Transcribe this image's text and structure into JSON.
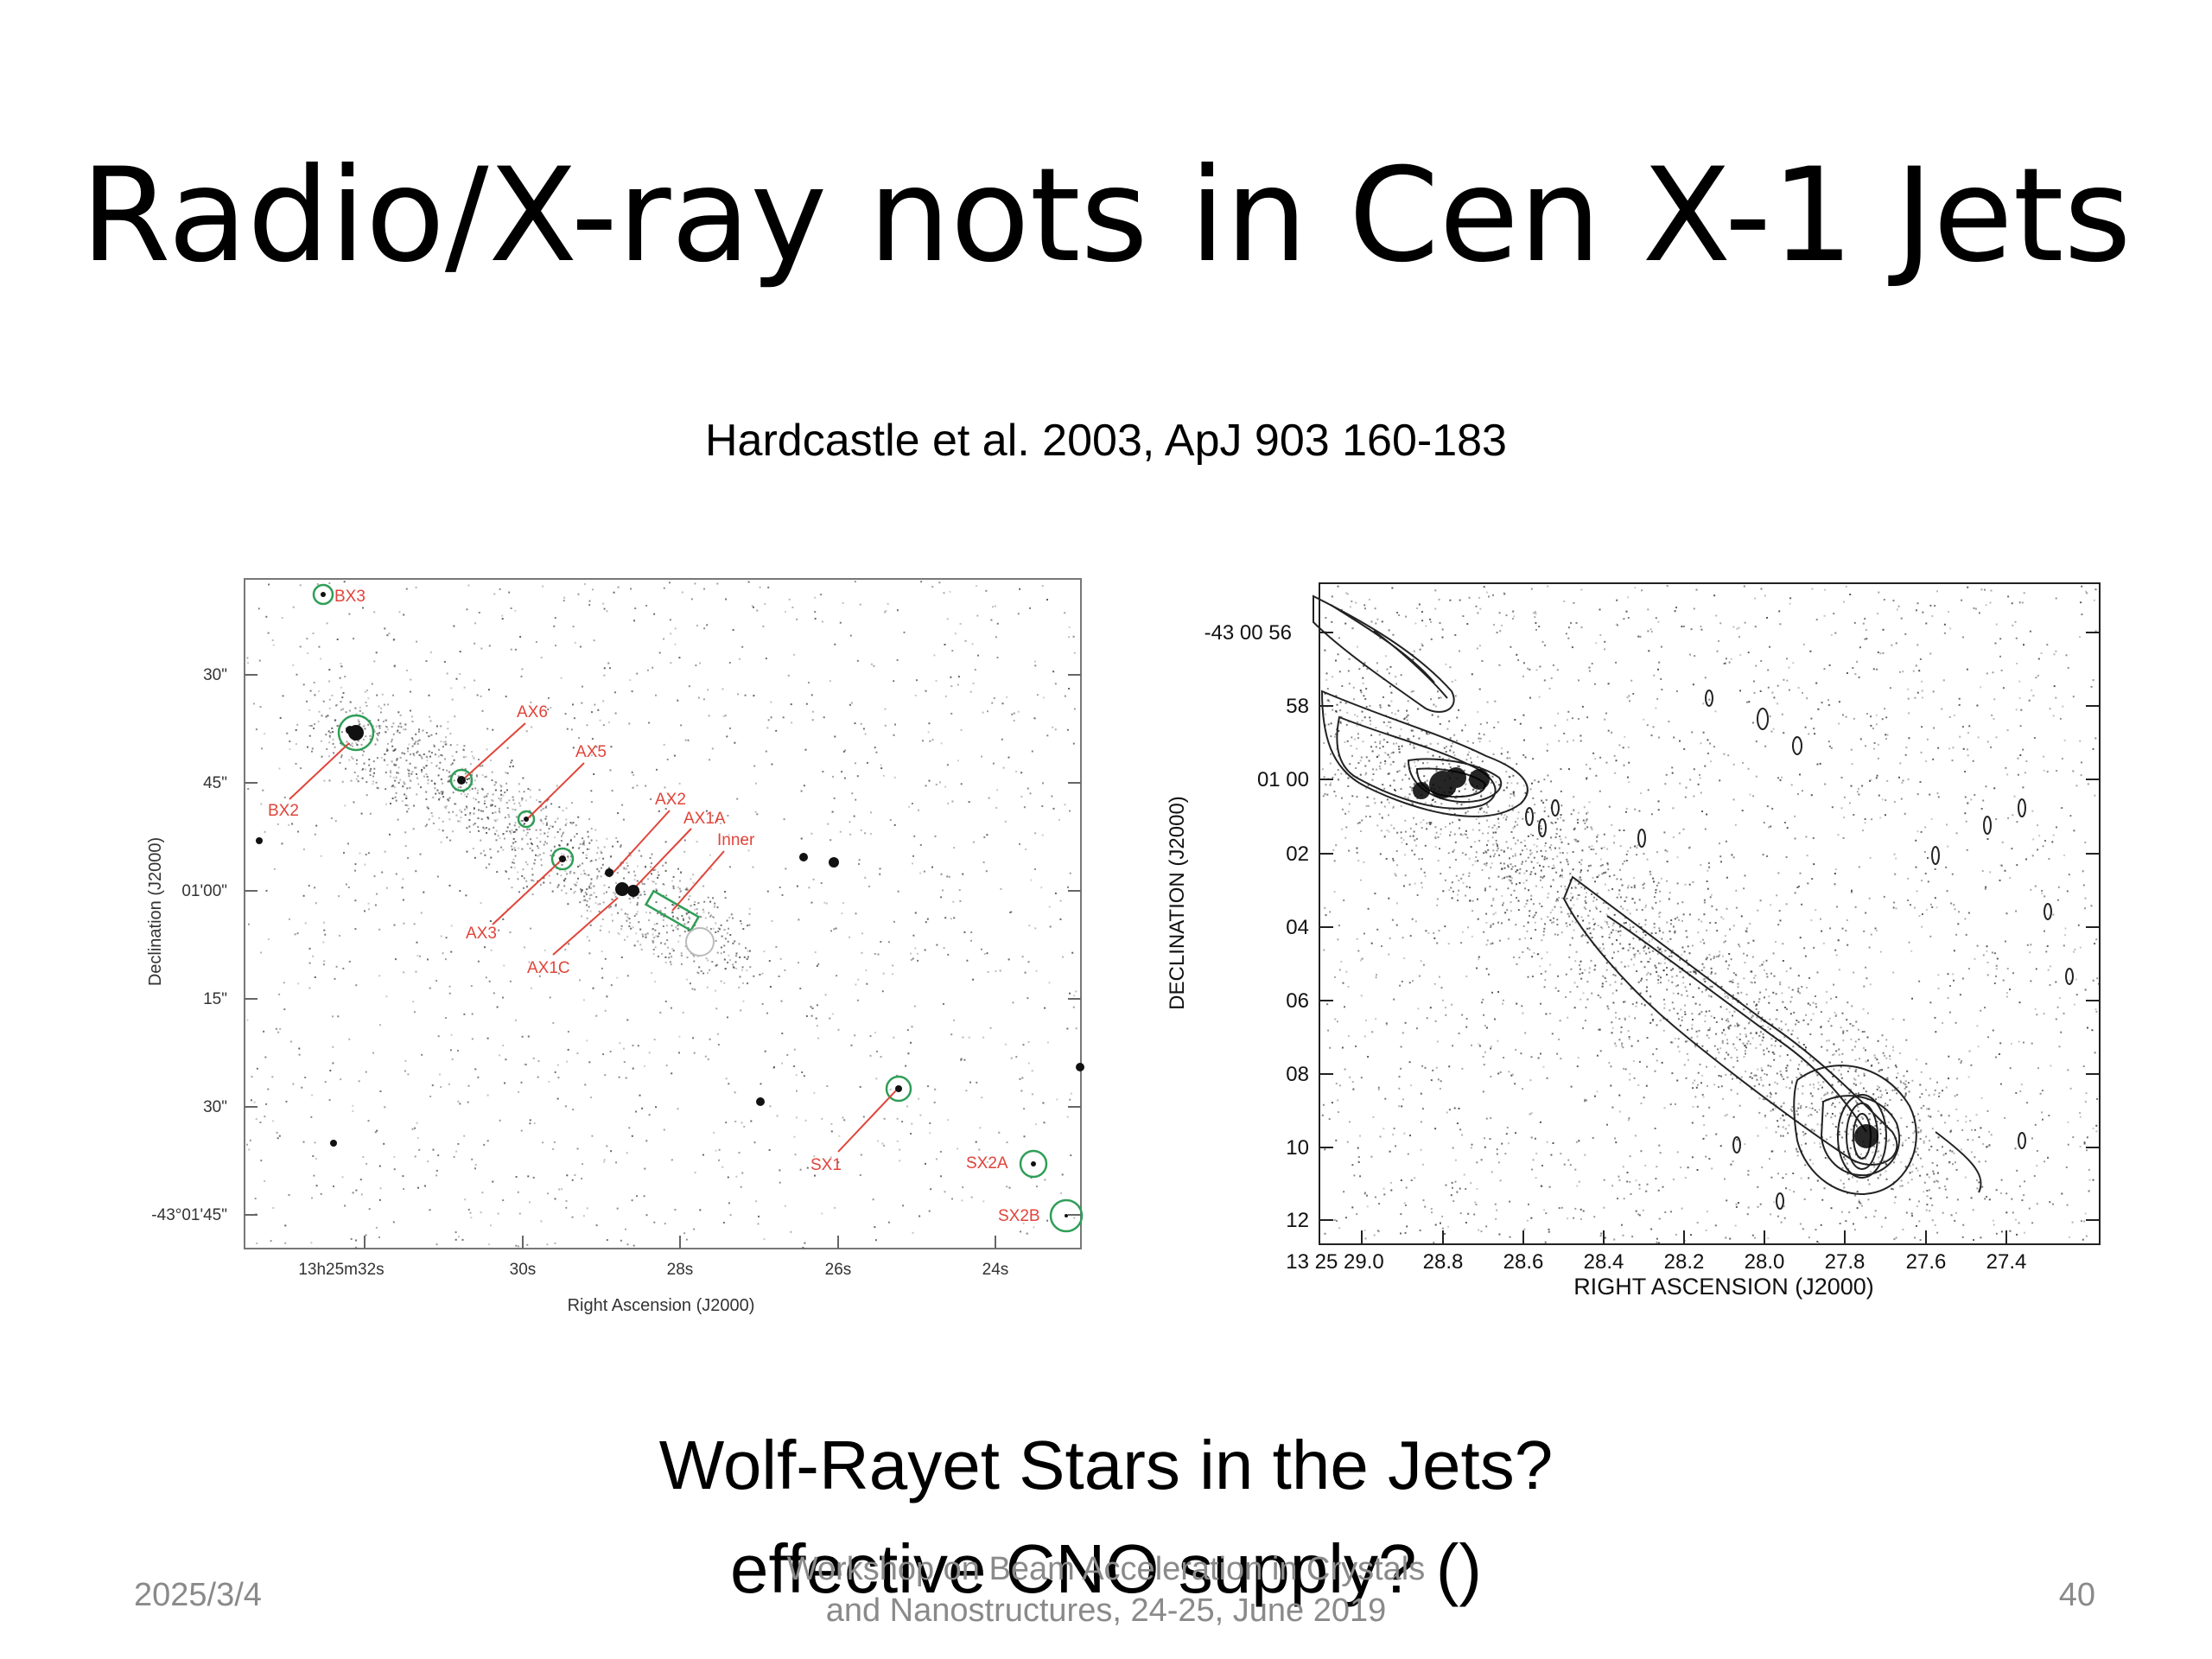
{
  "slide": {
    "title": "Radio/X-ray nots in Cen X-1 Jets",
    "citation": "Hardcastle et al. 2003, ApJ 903 160-183",
    "question_line1": "Wolf-Rayet Stars in the Jets?",
    "question_line2": "effective CNO supply? ()"
  },
  "footer": {
    "date": "2025/3/4",
    "workshop_line1": "Workshop on Beam Acceleration in Crystals",
    "workshop_line2": "and Nanostructures, 24-25, June 2019",
    "page": "40"
  },
  "left_figure": {
    "xlabel": "Right Ascension  (J2000)",
    "ylabel": "Declination  (J2000)",
    "xticks": [
      "13h25m32s",
      "30s",
      "28s",
      "26s",
      "24s"
    ],
    "yticks": [
      "30\"",
      "45\"",
      "01'00\"",
      "15\"",
      "30\"",
      "-43°01'45\""
    ],
    "labels": [
      "BX3",
      "AX6",
      "AX5",
      "BX2",
      "AX2",
      "AX1A",
      "Inner",
      "AX3",
      "AX1C",
      "SX1",
      "SX2A",
      "SX2B"
    ],
    "colors": {
      "label": "#e0443a",
      "circle": "#2f9e57"
    }
  },
  "right_figure": {
    "xlabel": "RIGHT ASCENSION (J2000)",
    "ylabel": "DECLINATION (J2000)",
    "xticks": [
      "13 25 29.0",
      "28.8",
      "28.6",
      "28.4",
      "28.2",
      "28.0",
      "27.8",
      "27.6",
      "27.4"
    ],
    "yticks": [
      "-43 00 56",
      "58",
      "01 00",
      "02",
      "04",
      "06",
      "08",
      "10",
      "12"
    ]
  }
}
